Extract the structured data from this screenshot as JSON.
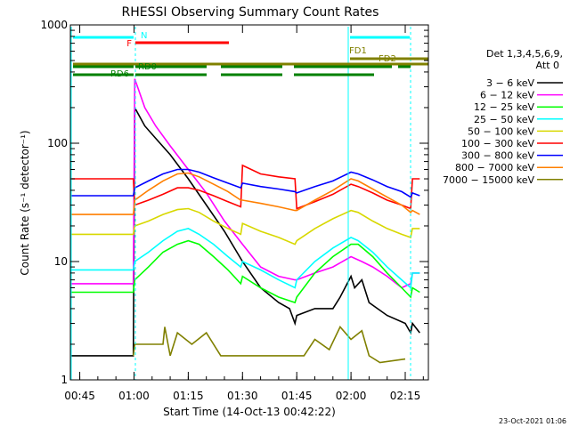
{
  "chart_data": {
    "type": "line",
    "title": "RHESSI Observing Summary Count Rates",
    "xlabel": "Start Time (14-Oct-13 00:42:22)",
    "ylabel": "Count Rate (s⁻¹ detector⁻¹)",
    "y_scale": "log",
    "ylim": [
      1,
      1000
    ],
    "xlim_minutes": [
      42.4,
      141.4
    ],
    "x_ticks": [
      {
        "minute": 45,
        "label": "00:45"
      },
      {
        "minute": 60,
        "label": "01:00"
      },
      {
        "minute": 75,
        "label": "01:15"
      },
      {
        "minute": 90,
        "label": "01:30"
      },
      {
        "minute": 105,
        "label": "01:45"
      },
      {
        "minute": 120,
        "label": "02:00"
      },
      {
        "minute": 135,
        "label": "02:15"
      }
    ],
    "y_ticks": [
      {
        "value": 1,
        "label": "1"
      },
      {
        "value": 10,
        "label": "10"
      },
      {
        "value": 100,
        "label": "100"
      },
      {
        "value": 1000,
        "label": "1000"
      }
    ],
    "legend": {
      "placement": "right",
      "header": [
        "Det 1,3,4,5,6,9,",
        "Att 0"
      ],
      "entries": [
        {
          "label": "3 − 6 keV",
          "color": "#000000"
        },
        {
          "label": "6 − 12 keV",
          "color": "#ff00ff"
        },
        {
          "label": "12 − 25 keV",
          "color": "#00ff00"
        },
        {
          "label": "25 − 50 keV",
          "color": "#00ffff"
        },
        {
          "label": "50 − 100 keV",
          "color": "#d8d800"
        },
        {
          "label": "100 − 300 keV",
          "color": "#ff0000"
        },
        {
          "label": "300 − 800 keV",
          "color": "#0000ff"
        },
        {
          "label": "800 − 7000 keV",
          "color": "#ff7f00"
        },
        {
          "label": "7000 − 15000 keV",
          "color": "#808000"
        }
      ]
    },
    "series": [
      {
        "name": "3 − 6 keV",
        "color": "#000000",
        "points": [
          [
            42.4,
            1.6
          ],
          [
            59.8,
            1.6
          ],
          [
            60.2,
            200
          ],
          [
            63,
            140
          ],
          [
            66,
            110
          ],
          [
            70,
            80
          ],
          [
            75,
            50
          ],
          [
            80,
            30
          ],
          [
            85,
            18
          ],
          [
            90,
            10
          ],
          [
            95,
            6
          ],
          [
            100,
            4.5
          ],
          [
            103,
            4
          ],
          [
            104.5,
            3
          ],
          [
            105,
            3.5
          ],
          [
            110,
            4
          ],
          [
            115,
            4
          ],
          [
            117,
            5
          ],
          [
            120,
            7.5
          ],
          [
            121,
            6
          ],
          [
            123,
            7
          ],
          [
            125,
            4.5
          ],
          [
            130,
            3.5
          ],
          [
            135,
            3
          ],
          [
            136.5,
            2.5
          ],
          [
            137,
            3
          ],
          [
            139,
            2.5
          ]
        ]
      },
      {
        "name": "6 − 12 keV",
        "color": "#ff00ff",
        "points": [
          [
            42.4,
            6.5
          ],
          [
            59.8,
            6.5
          ],
          [
            60.2,
            350
          ],
          [
            63,
            200
          ],
          [
            66,
            140
          ],
          [
            70,
            95
          ],
          [
            75,
            60
          ],
          [
            80,
            38
          ],
          [
            85,
            22
          ],
          [
            90,
            14
          ],
          [
            95,
            9
          ],
          [
            100,
            7.5
          ],
          [
            104.5,
            7
          ],
          [
            105,
            7
          ],
          [
            110,
            8
          ],
          [
            115,
            9
          ],
          [
            120,
            11
          ],
          [
            123,
            10
          ],
          [
            126,
            9
          ],
          [
            130,
            7.5
          ],
          [
            134,
            6
          ],
          [
            136.5,
            6.5
          ],
          [
            137,
            8
          ],
          [
            139,
            8
          ]
        ]
      },
      {
        "name": "12 − 25 keV",
        "color": "#00ff00",
        "points": [
          [
            42.4,
            5.5
          ],
          [
            59.8,
            5.5
          ],
          [
            60.2,
            7
          ],
          [
            64,
            9
          ],
          [
            68,
            12
          ],
          [
            72,
            14
          ],
          [
            75,
            15
          ],
          [
            78,
            14
          ],
          [
            82,
            11
          ],
          [
            86,
            8.5
          ],
          [
            89.5,
            6.5
          ],
          [
            90,
            7.5
          ],
          [
            95,
            6
          ],
          [
            100,
            5
          ],
          [
            104.5,
            4.5
          ],
          [
            105,
            5
          ],
          [
            110,
            8
          ],
          [
            115,
            11
          ],
          [
            120,
            14
          ],
          [
            122,
            14
          ],
          [
            126,
            11
          ],
          [
            130,
            8
          ],
          [
            134,
            6
          ],
          [
            136.5,
            5
          ],
          [
            137,
            6
          ],
          [
            139,
            5.5
          ]
        ]
      },
      {
        "name": "25 − 50 keV",
        "color": "#00ffff",
        "points": [
          [
            42.4,
            8.5
          ],
          [
            59.8,
            8.5
          ],
          [
            60.2,
            10
          ],
          [
            64,
            12
          ],
          [
            68,
            15
          ],
          [
            72,
            18
          ],
          [
            75,
            19
          ],
          [
            78,
            17
          ],
          [
            82,
            14
          ],
          [
            86,
            11
          ],
          [
            89.5,
            9
          ],
          [
            90,
            10
          ],
          [
            95,
            8.5
          ],
          [
            100,
            7
          ],
          [
            104.5,
            6
          ],
          [
            105,
            7
          ],
          [
            110,
            10
          ],
          [
            115,
            13
          ],
          [
            120,
            16
          ],
          [
            122,
            15
          ],
          [
            126,
            12
          ],
          [
            130,
            9
          ],
          [
            134,
            7
          ],
          [
            136.5,
            6
          ],
          [
            137,
            8
          ],
          [
            139,
            8
          ]
        ]
      },
      {
        "name": "50 − 100 keV",
        "color": "#d8d800",
        "points": [
          [
            42.4,
            17
          ],
          [
            59.8,
            17
          ],
          [
            60.2,
            20
          ],
          [
            64,
            22
          ],
          [
            68,
            25
          ],
          [
            72,
            27.5
          ],
          [
            75,
            28
          ],
          [
            78,
            26
          ],
          [
            82,
            22
          ],
          [
            86,
            19
          ],
          [
            89.5,
            17
          ],
          [
            90,
            21
          ],
          [
            95,
            18
          ],
          [
            100,
            16
          ],
          [
            104.5,
            14
          ],
          [
            105,
            15
          ],
          [
            110,
            19
          ],
          [
            115,
            23
          ],
          [
            120,
            27
          ],
          [
            122,
            26
          ],
          [
            126,
            22
          ],
          [
            130,
            19
          ],
          [
            134,
            17
          ],
          [
            136.5,
            16
          ],
          [
            137,
            19
          ],
          [
            139,
            19
          ]
        ]
      },
      {
        "name": "100 − 300 keV",
        "color": "#ff0000",
        "points": [
          [
            42.4,
            50
          ],
          [
            59.8,
            50
          ],
          [
            60.2,
            30
          ],
          [
            64,
            33
          ],
          [
            68,
            37
          ],
          [
            72,
            42
          ],
          [
            75,
            42
          ],
          [
            78,
            40
          ],
          [
            82,
            36
          ],
          [
            86,
            32
          ],
          [
            89.5,
            29
          ],
          [
            90,
            65
          ],
          [
            95,
            55
          ],
          [
            100,
            52
          ],
          [
            104.5,
            50
          ],
          [
            105,
            28
          ],
          [
            110,
            32
          ],
          [
            115,
            37
          ],
          [
            120,
            45
          ],
          [
            122,
            43
          ],
          [
            126,
            38
          ],
          [
            130,
            33
          ],
          [
            134,
            30
          ],
          [
            136.5,
            28
          ],
          [
            137,
            50
          ],
          [
            139,
            50
          ]
        ]
      },
      {
        "name": "300 − 800 keV",
        "color": "#0000ff",
        "points": [
          [
            42.4,
            36
          ],
          [
            59.8,
            36
          ],
          [
            60.2,
            42
          ],
          [
            64,
            48
          ],
          [
            68,
            55
          ],
          [
            72,
            60
          ],
          [
            75,
            60
          ],
          [
            78,
            57
          ],
          [
            82,
            51
          ],
          [
            86,
            46
          ],
          [
            89.5,
            42
          ],
          [
            90,
            46
          ],
          [
            95,
            43
          ],
          [
            100,
            41
          ],
          [
            104.5,
            39
          ],
          [
            105,
            38
          ],
          [
            110,
            43
          ],
          [
            115,
            48
          ],
          [
            120,
            57
          ],
          [
            122,
            55
          ],
          [
            126,
            49
          ],
          [
            130,
            43
          ],
          [
            134,
            39
          ],
          [
            136.5,
            35
          ],
          [
            137,
            38
          ],
          [
            139,
            36
          ]
        ]
      },
      {
        "name": "800 − 7000 keV",
        "color": "#ff7f00",
        "points": [
          [
            42.4,
            25
          ],
          [
            59.8,
            25
          ],
          [
            60.2,
            33
          ],
          [
            64,
            40
          ],
          [
            68,
            48
          ],
          [
            72,
            55
          ],
          [
            75,
            56
          ],
          [
            78,
            52
          ],
          [
            82,
            45
          ],
          [
            86,
            39
          ],
          [
            89.5,
            33
          ],
          [
            90,
            33
          ],
          [
            95,
            31
          ],
          [
            100,
            29
          ],
          [
            104.5,
            27
          ],
          [
            105,
            27
          ],
          [
            110,
            33
          ],
          [
            115,
            40
          ],
          [
            120,
            50
          ],
          [
            122,
            48
          ],
          [
            126,
            41
          ],
          [
            130,
            35
          ],
          [
            134,
            30
          ],
          [
            136.5,
            26
          ],
          [
            137,
            27
          ],
          [
            139,
            25
          ]
        ]
      },
      {
        "name": "7000 − 15000 keV",
        "color": "#808000",
        "points": [
          [
            59.8,
            1.6
          ],
          [
            60.2,
            2
          ],
          [
            68,
            2
          ],
          [
            68.5,
            2.8
          ],
          [
            70,
            1.6
          ],
          [
            72,
            2.5
          ],
          [
            76,
            2
          ],
          [
            80,
            2.5
          ],
          [
            84,
            1.6
          ],
          [
            88,
            1.6
          ],
          [
            107,
            1.6
          ],
          [
            110,
            2.2
          ],
          [
            114,
            1.8
          ],
          [
            117,
            2.8
          ],
          [
            120,
            2.2
          ],
          [
            123,
            2.6
          ],
          [
            125,
            1.6
          ],
          [
            128,
            1.4
          ],
          [
            135,
            1.5
          ]
        ]
      }
    ],
    "annotations": [
      {
        "label": "N",
        "color": "#00ffff"
      },
      {
        "label": "F",
        "color": "#ff0000"
      },
      {
        "label": "RD0",
        "color": "#008000"
      },
      {
        "label": "RD6",
        "color": "#008000"
      },
      {
        "label": "FD1",
        "color": "#808000"
      },
      {
        "label": "FD2",
        "color": "#808000"
      }
    ],
    "timestamp": "23-Oct-2021 01:06"
  }
}
